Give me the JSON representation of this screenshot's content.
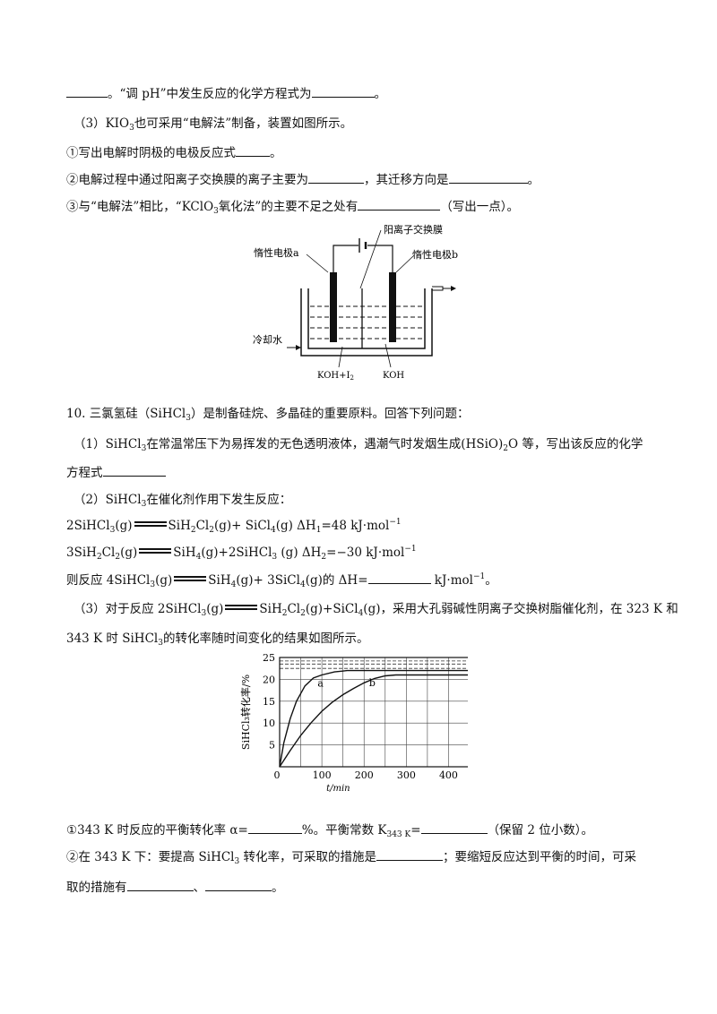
{
  "q9": {
    "l1_end": "。“调 pH”中发生反应的化学方程式为",
    "l1_tail": "。",
    "p3_a": "（3）KIO",
    "p3_sub": "3",
    "p3_b": "也可采用“电解法”制备，装置如图所示。",
    "s1_a": "①写出电解时阴极的电极反应式",
    "s1_b": "。",
    "s2_a": "②电解过程中通过阳离子交换膜的离子主要为",
    "s2_b": "，其迁移方向是",
    "s2_c": "。",
    "s3_a": "③与“电解法”相比，“KClO",
    "s3_sub": "3",
    "s3_b": "氧化法”的主要不足之处有",
    "s3_c": "（写出一点）。"
  },
  "diagram": {
    "membrane_label": "阳离子交换膜",
    "electrode_a": "惰性电极a",
    "electrode_b": "惰性电极b",
    "cooling": "冷却水",
    "left_sol": "KOH+I",
    "left_sol_sub": "2",
    "right_sol": "KOH"
  },
  "q10": {
    "title_a": "10. 三氯氢硅（SiHCl",
    "title_sub": "3",
    "title_b": "）是制备硅烷、多晶硅的重要原料。回答下列问题：",
    "p1_a": "（1）SiHCl",
    "p1_sub1": "3",
    "p1_b": "在常温常压下为易挥发的无色透明液体，遇潮气时发烟生成(HSiO)",
    "p1_sub2": "2",
    "p1_c": "O 等，写出该反应的化学",
    "p1_d": "方程式",
    "p2_a": "（2）SiHCl",
    "p2_sub": "3",
    "p2_b": "在催化剂作用下发生反应：",
    "r1_a": "2SiHCl",
    "r1_s1": "3",
    "r1_b": "(g)",
    "r1_c": "SiH",
    "r1_s2": "2",
    "r1_d": "Cl",
    "r1_s3": "2",
    "r1_e": "(g)+ SiCl",
    "r1_s4": "4",
    "r1_f": "(g)  ΔH",
    "r1_s5": "1",
    "r1_g": "=48 kJ·mol",
    "r1_sup": "−1",
    "r2_a": "3SiH",
    "r2_s1": "2",
    "r2_b": "Cl",
    "r2_s2": "2",
    "r2_c": "(g)",
    "r2_d": "SiH",
    "r2_s3": "4",
    "r2_e": "(g)+2SiHCl",
    "r2_s4": "3",
    "r2_f": " (g)  ΔH",
    "r2_s5": "2",
    "r2_g": "=−30 kJ·mol",
    "r2_sup": "−1",
    "r3_a": "则反应 4SiHCl",
    "r3_s1": "3",
    "r3_b": "(g)",
    "r3_c": "SiH",
    "r3_s2": "4",
    "r3_d": "(g)+ 3SiCl",
    "r3_s3": "4",
    "r3_e": "(g)的 ΔH=",
    "r3_f": " kJ·mol",
    "r3_sup": "−1",
    "r3_g": "。",
    "p3_a": "（3）对于反应 2SiHCl",
    "p3_s1": "3",
    "p3_b": "(g)",
    "p3_c": "SiH",
    "p3_s2": "2",
    "p3_d": "Cl",
    "p3_s3": "2",
    "p3_e": "(g)+SiCl",
    "p3_s4": "4",
    "p3_f": "(g)，采用大孔弱碱性阴离子交换树脂催化剂，在 323 K 和",
    "p3_g": "343 K 时 SiHCl",
    "p3_s5": "3",
    "p3_h": "的转化率随时间变化的结果如图所示。",
    "q1_a": "①343 K 时反应的平衡转化率 α=",
    "q1_b": "%。平衡常数 K",
    "q1_sub": "343 K",
    "q1_c": "=",
    "q1_d": "（保留 2 位小数）。",
    "q2_a": "②在 343 K 下：要提高 SiHCl",
    "q2_sub": "3",
    "q2_b": " 转化率，可采取的措施是",
    "q2_c": "；要缩短反应达到平衡的时间，可采",
    "q2_d": "取的措施有",
    "q2_e": "、",
    "q2_f": "。"
  },
  "chart_data": {
    "type": "line",
    "ylabel": "SiHCl₃转化率/%",
    "xlabel": "t/min",
    "xticks": [
      "0",
      "100",
      "200",
      "300",
      "400"
    ],
    "yticks": [
      "0",
      "5",
      "10",
      "15",
      "20",
      "25"
    ],
    "xlim": [
      0,
      450
    ],
    "ylim": [
      0,
      25
    ],
    "grid": true,
    "series": [
      {
        "name": "a",
        "x": [
          0,
          10,
          25,
          40,
          60,
          80,
          100,
          130,
          160,
          200,
          250,
          300,
          450
        ],
        "values": [
          0,
          5.5,
          11,
          15,
          18.5,
          20.3,
          21,
          21.7,
          22,
          22,
          22,
          22,
          22
        ]
      },
      {
        "name": "b",
        "x": [
          0,
          25,
          50,
          75,
          100,
          125,
          150,
          175,
          200,
          225,
          250,
          275,
          300,
          350,
          450
        ],
        "values": [
          0,
          3.7,
          7.2,
          10.1,
          12.7,
          14.8,
          16.5,
          17.9,
          19.2,
          20.2,
          20.8,
          21,
          21,
          21,
          21
        ]
      }
    ],
    "dashed_levels": [
      23.5,
      24.2,
      22.5
    ],
    "labels": [
      "a",
      "b"
    ]
  }
}
